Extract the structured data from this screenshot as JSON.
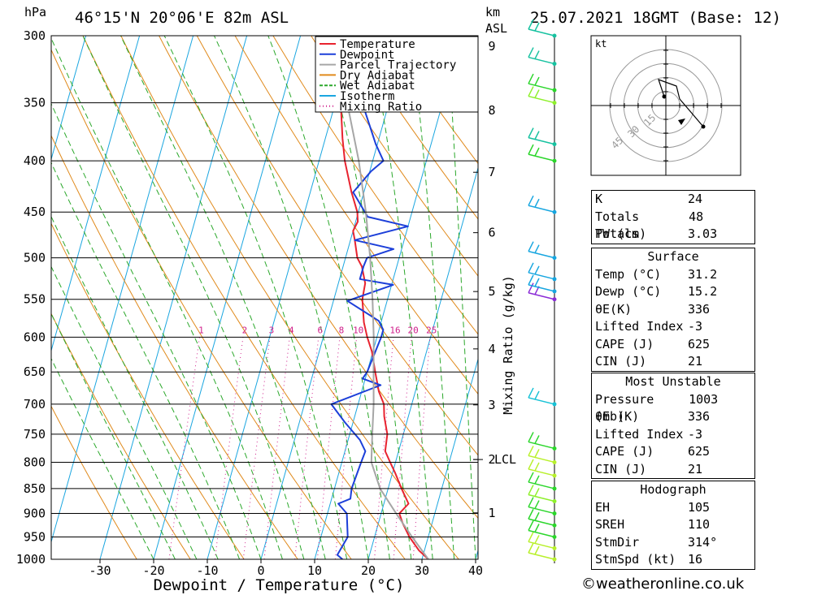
{
  "header": {
    "pressure_unit": "hPa",
    "location": "46°15'N  20°06'E  82m  ASL",
    "height_unit_1": "km",
    "height_unit_2": "ASL",
    "datetime": "25.07.2021  18GMT  (Base: 12)"
  },
  "chart_data": {
    "type": "line",
    "title": "",
    "xlabel": "Dewpoint / Temperature (°C)",
    "ylabel": "hPa",
    "xlim": [
      -40,
      40
    ],
    "x_ticks": [
      -30,
      -20,
      -10,
      0,
      10,
      20,
      30,
      40
    ],
    "pressure_levels": [
      300,
      350,
      400,
      450,
      500,
      550,
      600,
      650,
      700,
      750,
      800,
      850,
      900,
      950,
      1000
    ],
    "height_ticks_km": [
      1,
      2,
      3,
      4,
      5,
      6,
      7,
      8,
      9
    ],
    "lcl_label": "LCL",
    "mixing_ratio_axis_label": "Mixing Ratio (g/kg)",
    "mixing_ratio_labels": [
      "1",
      "2",
      "3",
      "4",
      "6",
      "8",
      "10",
      "16",
      "20",
      "25"
    ],
    "legend": [
      {
        "name": "Temperature",
        "color": "#e8232f"
      },
      {
        "name": "Dewpoint",
        "color": "#1c3fd9"
      },
      {
        "name": "Parcel Trajectory",
        "color": "#a6a6a6"
      },
      {
        "name": "Dry Adiabat",
        "color": "#e08a1c"
      },
      {
        "name": "Wet Adiabat",
        "color": "#2ba82b"
      },
      {
        "name": "Isotherm",
        "color": "#1ba6e0"
      },
      {
        "name": "Mixing Ratio",
        "color": "#d0208c"
      }
    ],
    "legend_position": "top-right",
    "series": [
      {
        "name": "Temperature",
        "points": [
          [
            1000,
            31.2
          ],
          [
            980,
            29.0
          ],
          [
            950,
            26.5
          ],
          [
            920,
            24.5
          ],
          [
            900,
            23.4
          ],
          [
            880,
            24.6
          ],
          [
            850,
            22.5
          ],
          [
            820,
            20.5
          ],
          [
            800,
            19.0
          ],
          [
            780,
            17.5
          ],
          [
            750,
            17.0
          ],
          [
            720,
            15.5
          ],
          [
            700,
            14.8
          ],
          [
            680,
            13.2
          ],
          [
            650,
            11.5
          ],
          [
            620,
            9.8
          ],
          [
            600,
            8.2
          ],
          [
            580,
            6.8
          ],
          [
            550,
            5.3
          ],
          [
            530,
            5.0
          ],
          [
            510,
            3.5
          ],
          [
            500,
            2.2
          ],
          [
            480,
            0.8
          ],
          [
            470,
            0.0
          ],
          [
            460,
            0.4
          ],
          [
            450,
            -0.2
          ],
          [
            430,
            -2.3
          ],
          [
            400,
            -5.2
          ],
          [
            380,
            -6.8
          ],
          [
            350,
            -9.0
          ],
          [
            330,
            -11.0
          ],
          [
            300,
            -14.0
          ]
        ]
      },
      {
        "name": "Dewpoint",
        "points": [
          [
            1000,
            15.2
          ],
          [
            990,
            14.0
          ],
          [
            950,
            15.0
          ],
          [
            900,
            13.6
          ],
          [
            880,
            11.5
          ],
          [
            870,
            13.5
          ],
          [
            850,
            13.2
          ],
          [
            800,
            13.6
          ],
          [
            780,
            13.8
          ],
          [
            760,
            12.2
          ],
          [
            730,
            8.5
          ],
          [
            700,
            5.0
          ],
          [
            670,
            13.2
          ],
          [
            660,
            9.5
          ],
          [
            650,
            10.0
          ],
          [
            600,
            10.8
          ],
          [
            590,
            10.8
          ],
          [
            578,
            9.5
          ],
          [
            552,
            2.6
          ],
          [
            532,
            10.3
          ],
          [
            525,
            3.8
          ],
          [
            510,
            3.8
          ],
          [
            500,
            4.0
          ],
          [
            490,
            8.5
          ],
          [
            480,
            0.8
          ],
          [
            465,
            10.0
          ],
          [
            455,
            2.0
          ],
          [
            430,
            -2.0
          ],
          [
            410,
            0.2
          ],
          [
            400,
            2.0
          ],
          [
            385,
            -0.3
          ],
          [
            350,
            -5.0
          ],
          [
            330,
            -8.5
          ],
          [
            310,
            -11.7
          ],
          [
            300,
            -11.2
          ]
        ]
      },
      {
        "name": "Parcel Trajectory",
        "points": [
          [
            1000,
            31.2
          ],
          [
            950,
            27.0
          ],
          [
            900,
            22.8
          ],
          [
            850,
            18.5
          ],
          [
            800,
            15.5
          ],
          [
            750,
            14.2
          ],
          [
            700,
            12.9
          ],
          [
            650,
            11.2
          ],
          [
            600,
            9.4
          ],
          [
            550,
            7.2
          ],
          [
            500,
            4.6
          ],
          [
            450,
            1.4
          ],
          [
            400,
            -2.6
          ],
          [
            350,
            -7.8
          ],
          [
            300,
            -14.0
          ]
        ]
      }
    ],
    "wind_barbs": [
      {
        "pressure": 1000,
        "color": "#b8f02b"
      },
      {
        "pressure": 975,
        "color": "#b8f02b"
      },
      {
        "pressure": 950,
        "color": "#2bd62b"
      },
      {
        "pressure": 925,
        "color": "#2bd62b"
      },
      {
        "pressure": 900,
        "color": "#2bd62b"
      },
      {
        "pressure": 875,
        "color": "#8ef02b"
      },
      {
        "pressure": 850,
        "color": "#2bd62b"
      },
      {
        "pressure": 825,
        "color": "#b8f02b"
      },
      {
        "pressure": 800,
        "color": "#b8f02b"
      },
      {
        "pressure": 775,
        "color": "#2bd62b"
      },
      {
        "pressure": 700,
        "color": "#17c2d6"
      },
      {
        "pressure": 550,
        "color": "#8a2bd6"
      },
      {
        "pressure": 540,
        "color": "#17a6e0"
      },
      {
        "pressure": 525,
        "color": "#17a6e0"
      },
      {
        "pressure": 500,
        "color": "#17a6e0"
      },
      {
        "pressure": 450,
        "color": "#17a6e0"
      },
      {
        "pressure": 400,
        "color": "#2bd62b"
      },
      {
        "pressure": 385,
        "color": "#17c2a0"
      },
      {
        "pressure": 350,
        "color": "#8ef02b"
      },
      {
        "pressure": 340,
        "color": "#2bd62b"
      },
      {
        "pressure": 320,
        "color": "#17c2a0"
      },
      {
        "pressure": 300,
        "color": "#17c2a0"
      }
    ]
  },
  "hodograph": {
    "unit": "kt",
    "rings": [
      "15",
      "30",
      "45"
    ]
  },
  "indices": {
    "top": [
      {
        "label": "K",
        "value": "24"
      },
      {
        "label": "Totals Totals",
        "value": "48"
      },
      {
        "label": "PW (cm)",
        "value": "3.03"
      }
    ],
    "surface": {
      "title": "Surface",
      "rows": [
        {
          "label": "Temp (°C)",
          "value": "31.2"
        },
        {
          "label": "Dewp (°C)",
          "value": "15.2"
        },
        {
          "label": "θE(K)",
          "value": "336"
        },
        {
          "label": "Lifted Index",
          "value": "-3"
        },
        {
          "label": "CAPE (J)",
          "value": "625"
        },
        {
          "label": "CIN (J)",
          "value": "21"
        }
      ]
    },
    "most_unstable": {
      "title": "Most Unstable",
      "rows": [
        {
          "label": "Pressure (mb)",
          "value": "1003"
        },
        {
          "label": "θE (K)",
          "value": "336"
        },
        {
          "label": "Lifted Index",
          "value": "-3"
        },
        {
          "label": "CAPE (J)",
          "value": "625"
        },
        {
          "label": "CIN (J)",
          "value": "21"
        }
      ]
    },
    "hodograph": {
      "title": "Hodograph",
      "rows": [
        {
          "label": "EH",
          "value": "105"
        },
        {
          "label": "SREH",
          "value": "110"
        },
        {
          "label": "StmDir",
          "value": "314°"
        },
        {
          "label": "StmSpd (kt)",
          "value": "16"
        }
      ]
    }
  },
  "footer": {
    "copyright": "©weatheronline.co.uk"
  }
}
